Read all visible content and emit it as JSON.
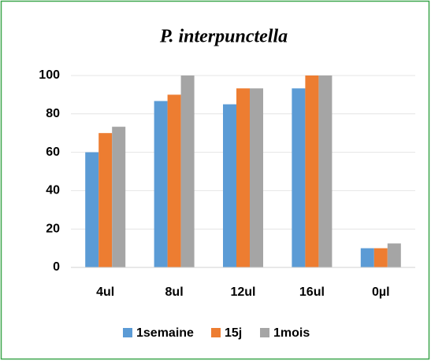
{
  "chart_data": {
    "type": "bar",
    "title": "P. interpunctella",
    "categories": [
      "4ul",
      "8ul",
      "12ul",
      "16ul",
      "0µl"
    ],
    "series": [
      {
        "name": "1semaine",
        "color": "#5b9bd5",
        "values": [
          60,
          86.7,
          85,
          93.3,
          10
        ]
      },
      {
        "name": "15j",
        "color": "#ed7d31",
        "values": [
          70,
          90,
          93.3,
          100,
          10
        ]
      },
      {
        "name": "1mois",
        "color": "#a5a5a5",
        "values": [
          73.3,
          100,
          93.3,
          100,
          12.5
        ]
      }
    ],
    "ylim": [
      0,
      100
    ],
    "yticks": [
      0,
      20,
      40,
      60,
      80,
      100
    ],
    "grid": true,
    "legend": "bottom"
  }
}
